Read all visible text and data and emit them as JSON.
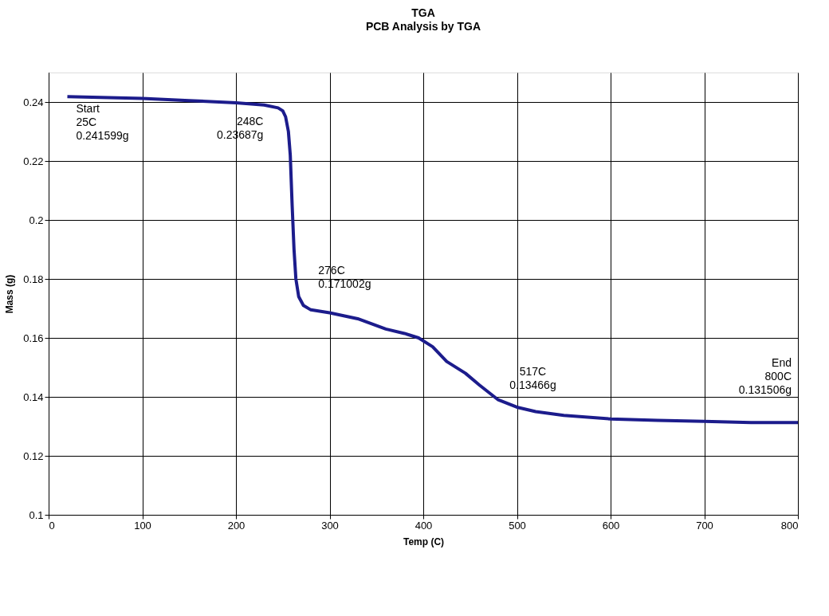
{
  "chart_data": {
    "type": "line",
    "title": "TGA",
    "subtitle": "PCB Analysis by TGA",
    "xlabel": "Temp (C)",
    "ylabel": "Mass (g)",
    "xlim": [
      0,
      800
    ],
    "xticks": [
      0,
      100,
      200,
      300,
      400,
      500,
      600,
      700,
      800
    ],
    "ylim": [
      0.1,
      0.25
    ],
    "yticks": [
      0.1,
      0.12,
      0.14,
      0.16,
      0.18,
      0.2,
      0.22,
      0.24
    ],
    "grid": true,
    "marker": "none",
    "line_style": "solid",
    "series": [
      {
        "color": "#1c1c8c",
        "x": [
          20,
          100,
          150,
          200,
          230,
          245,
          250,
          253,
          256,
          258,
          260,
          262,
          264,
          267,
          272,
          280,
          300,
          330,
          360,
          380,
          395,
          410,
          425,
          445,
          460,
          480,
          500,
          520,
          550,
          600,
          650,
          700,
          750,
          800
        ],
        "values": [
          0.2418,
          0.2412,
          0.2405,
          0.2397,
          0.239,
          0.238,
          0.237,
          0.235,
          0.23,
          0.222,
          0.205,
          0.19,
          0.18,
          0.174,
          0.171,
          0.1695,
          0.1685,
          0.1665,
          0.163,
          0.1615,
          0.16,
          0.157,
          0.152,
          0.148,
          0.144,
          0.139,
          0.1365,
          0.135,
          0.1337,
          0.1325,
          0.132,
          0.1317,
          0.1313,
          0.1313
        ]
      }
    ],
    "annotations": [
      {
        "text": "Start\n25C\n0.241599g",
        "x": 25,
        "y": 0.241599
      },
      {
        "text": "248C\n0.23687g",
        "x": 248,
        "y": 0.23687
      },
      {
        "text": "276C\n0.171002g",
        "x": 276,
        "y": 0.171002
      },
      {
        "text": "517C\n0.13466g",
        "x": 517,
        "y": 0.13466
      },
      {
        "text": "End\n800C\n0.131506g",
        "x": 800,
        "y": 0.131506
      }
    ]
  }
}
